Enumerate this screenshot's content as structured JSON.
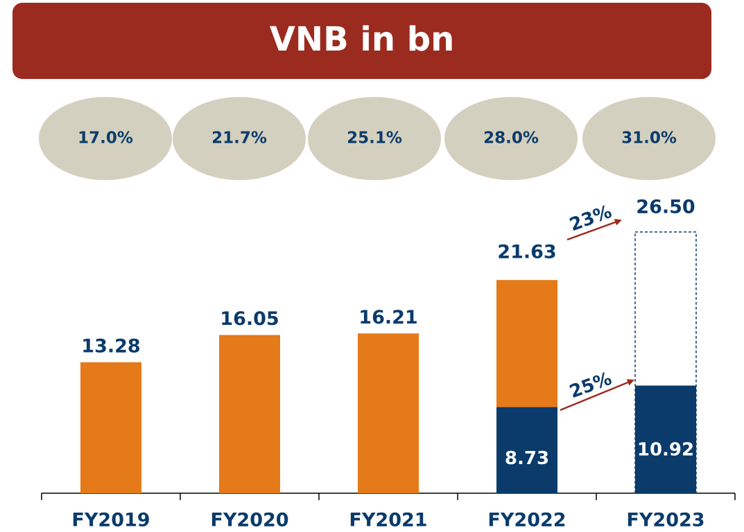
{
  "chart_data": {
    "type": "bar",
    "title": "VNB in bn",
    "categories": [
      "FY2019",
      "FY2020",
      "FY2021",
      "FY2022",
      "FY2023"
    ],
    "ratios": {
      "values": [
        17.0,
        21.7,
        25.1,
        28.0,
        31.0
      ],
      "value_labels": [
        "17.0%",
        "21.7%",
        "25.1%",
        "28.0%",
        "31.0%"
      ],
      "color": "#d4d0bf"
    },
    "series": [
      {
        "color": "#e57a1a",
        "values": [
          13.28,
          16.05,
          16.21,
          21.63,
          26.5
        ],
        "value_labels": [
          "13.28",
          "16.05",
          "16.21",
          "21.63",
          "26.50"
        ],
        "outline_only": [
          false,
          false,
          false,
          false,
          true
        ]
      },
      {
        "color": "#0a3b6b",
        "values": [
          null,
          null,
          null,
          8.73,
          10.92
        ]
      }
    ],
    "annotations": [
      {
        "text": "23%"
      },
      {
        "text": "25%"
      }
    ]
  }
}
